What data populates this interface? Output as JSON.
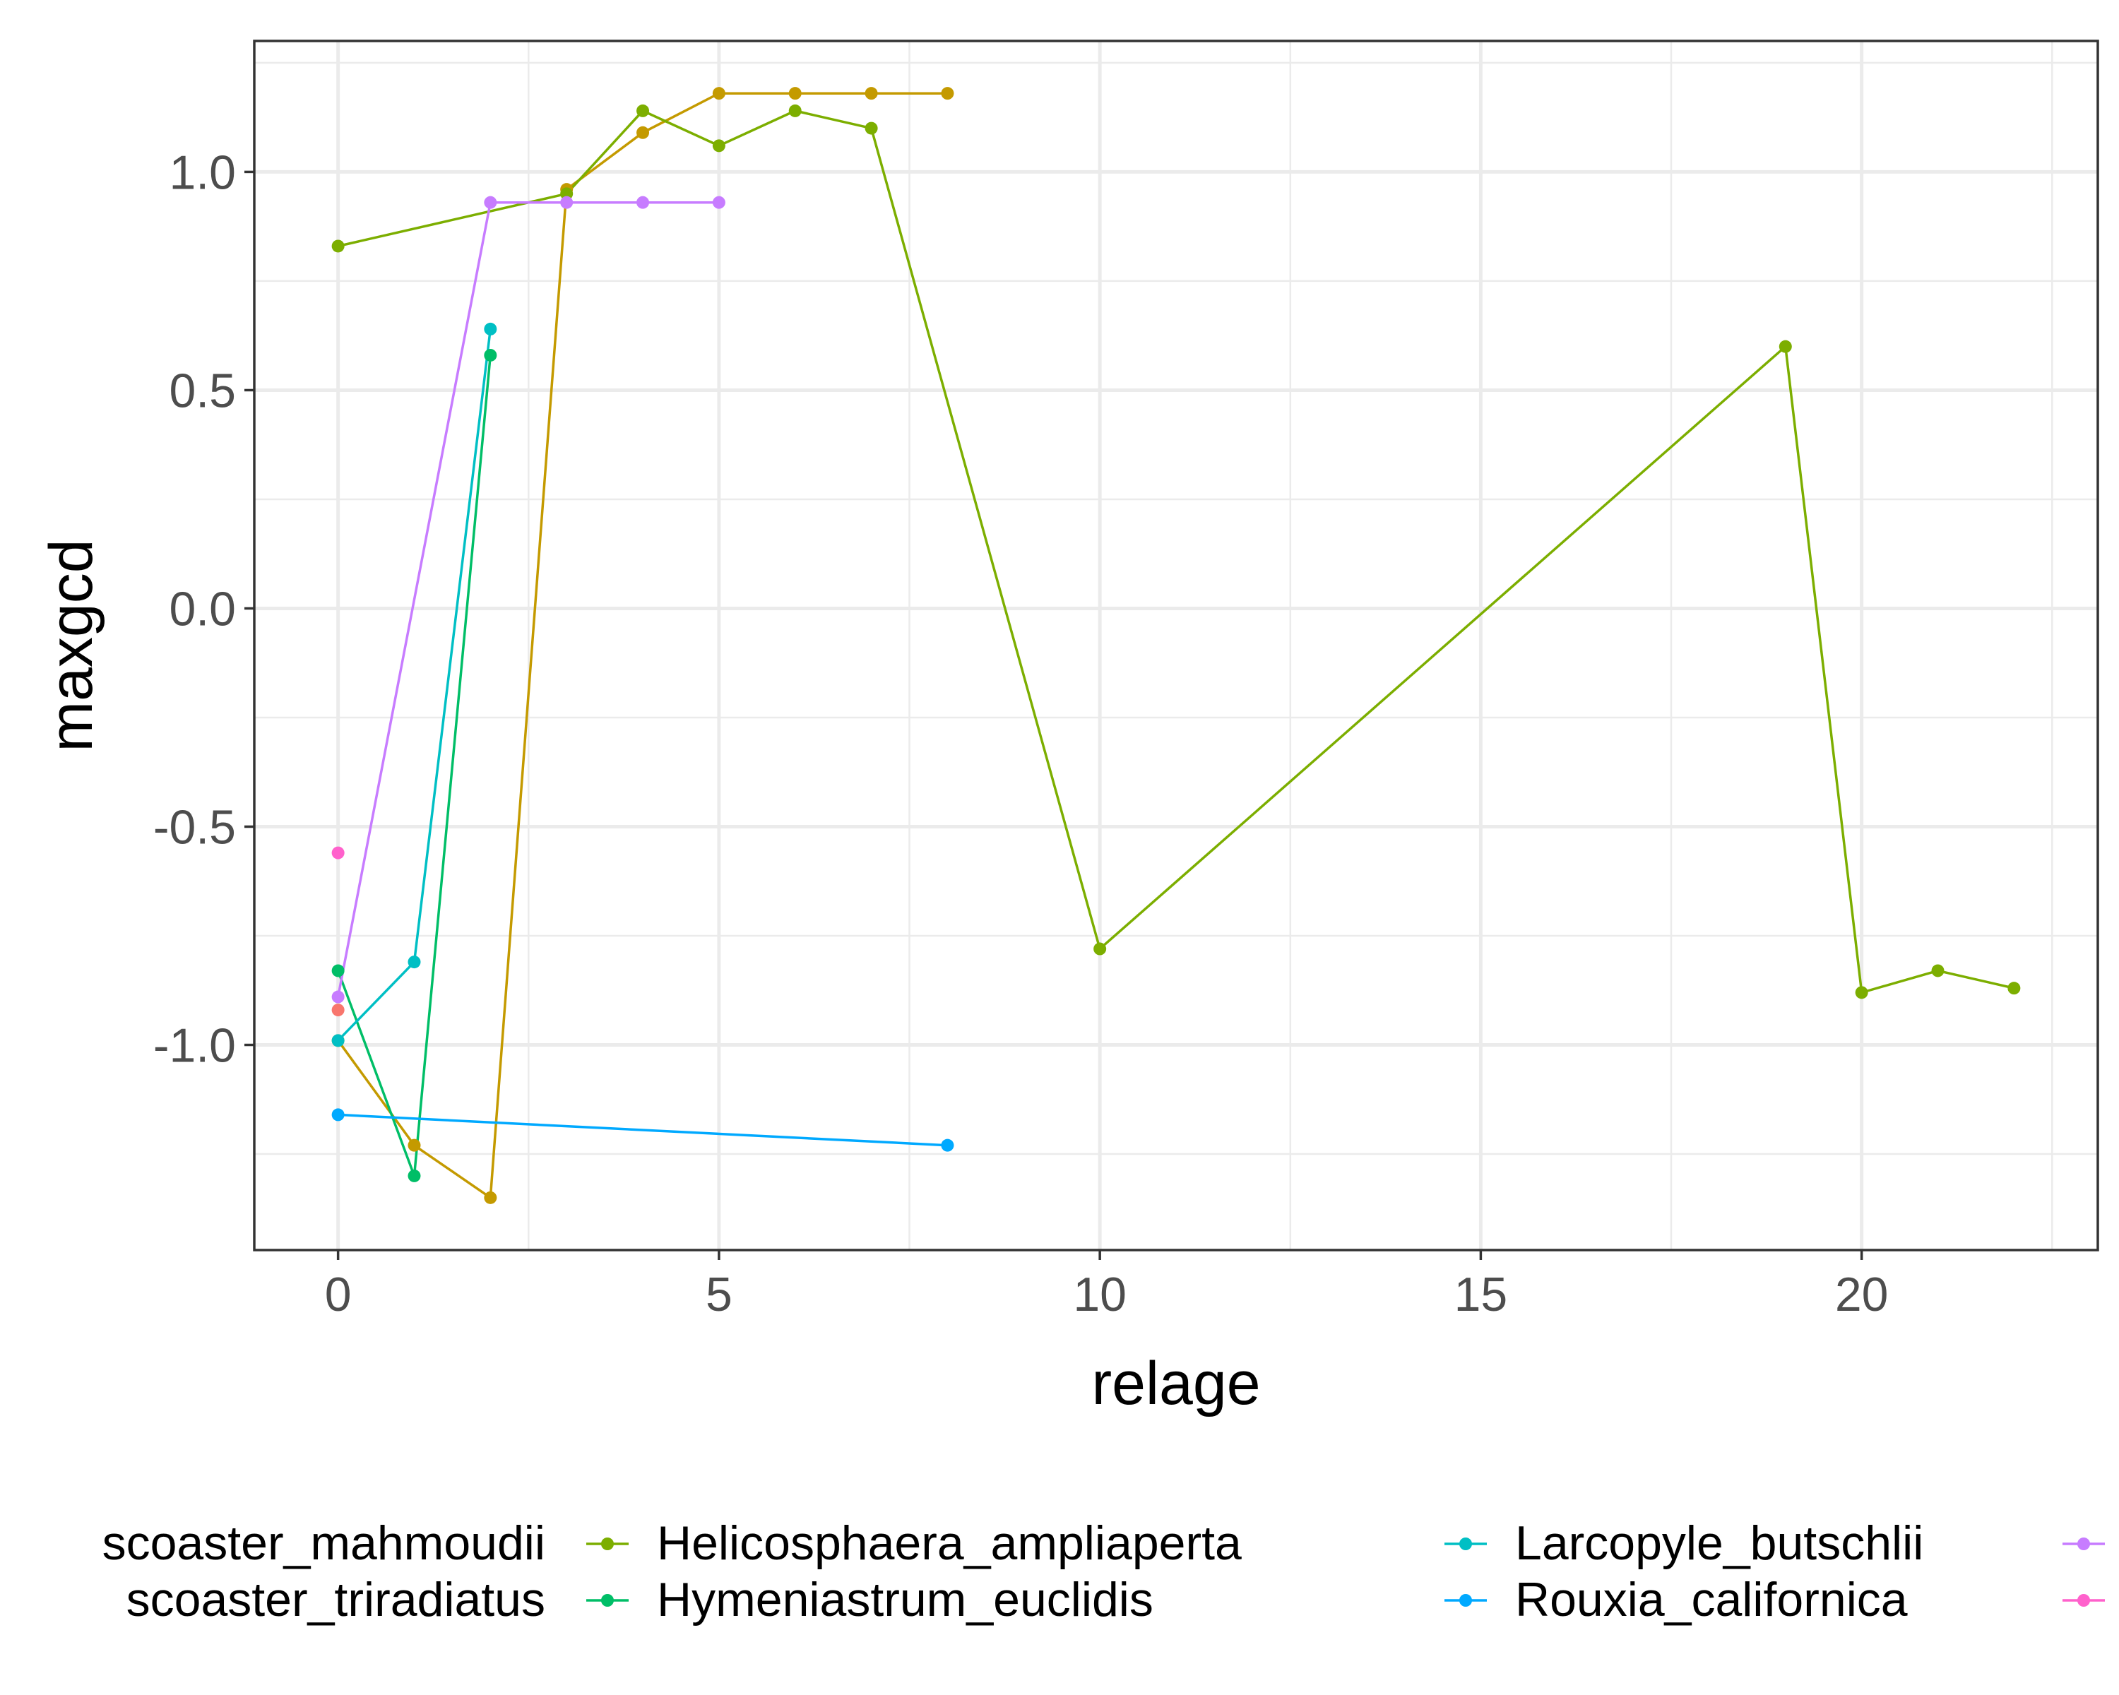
{
  "chart_data": {
    "type": "line",
    "xlabel": "relage",
    "ylabel": "maxgcd",
    "xlim": [
      -1.1,
      23.1
    ],
    "ylim": [
      -1.47,
      1.3
    ],
    "xticks": [
      0,
      5,
      10,
      15,
      20
    ],
    "yticks": [
      -1.0,
      -0.5,
      0.0,
      0.5,
      1.0
    ],
    "xtick_labels": [
      "0",
      "5",
      "10",
      "15",
      "20"
    ],
    "ytick_labels": [
      "-1.0",
      "-0.5",
      "0.0",
      "0.5",
      "1.0"
    ],
    "grid": true,
    "legend_position": "bottom",
    "series": [
      {
        "name": "Discoaster_mahmoudii",
        "legend_text": "scoaster_mahmoudii",
        "color": "#F8766D",
        "x": [
          0
        ],
        "y": [
          -0.92
        ]
      },
      {
        "name": "Discoaster_triradiatus",
        "legend_text": "scoaster_triradiatus",
        "color": "#C49A00",
        "x": [
          0,
          1,
          2,
          3,
          4,
          5,
          6,
          7,
          8
        ],
        "y": [
          -0.99,
          -1.23,
          -1.35,
          0.96,
          1.09,
          1.18,
          1.18,
          1.18,
          1.18
        ]
      },
      {
        "name": "Helicosphaera_ampliaperta",
        "legend_text": "Helicosphaera_ampliaperta",
        "color": "#7CAE00",
        "x": [
          0,
          3,
          4,
          5,
          6,
          7,
          10,
          19,
          20,
          21,
          22
        ],
        "y": [
          0.83,
          0.95,
          1.14,
          1.06,
          1.14,
          1.1,
          -0.78,
          0.6,
          -0.88,
          -0.83,
          -0.87
        ]
      },
      {
        "name": "Hymeniastrum_euclidis",
        "legend_text": "Hymeniastrum_euclidis",
        "color": "#00BE67",
        "x": [
          0,
          1,
          2
        ],
        "y": [
          -0.83,
          -1.3,
          0.58
        ]
      },
      {
        "name": "Larcopyle_butschlii",
        "legend_text": "Larcopyle_butschlii",
        "color": "#00BFC4",
        "x": [
          0,
          1,
          2
        ],
        "y": [
          -0.99,
          -0.81,
          0.64
        ]
      },
      {
        "name": "Rouxia_californica",
        "legend_text": "Rouxia_californica",
        "color": "#00A9FF",
        "x": [
          0,
          8
        ],
        "y": [
          -1.16,
          -1.23
        ]
      },
      {
        "name": "series_purple",
        "legend_text": "",
        "color": "#C77CFF",
        "x": [
          0,
          2,
          3,
          4,
          5
        ],
        "y": [
          -0.89,
          0.93,
          0.93,
          0.93,
          0.93
        ]
      },
      {
        "name": "series_pink",
        "legend_text": "",
        "color": "#FF61CC",
        "x": [
          0
        ],
        "y": [
          -0.56
        ]
      }
    ]
  }
}
